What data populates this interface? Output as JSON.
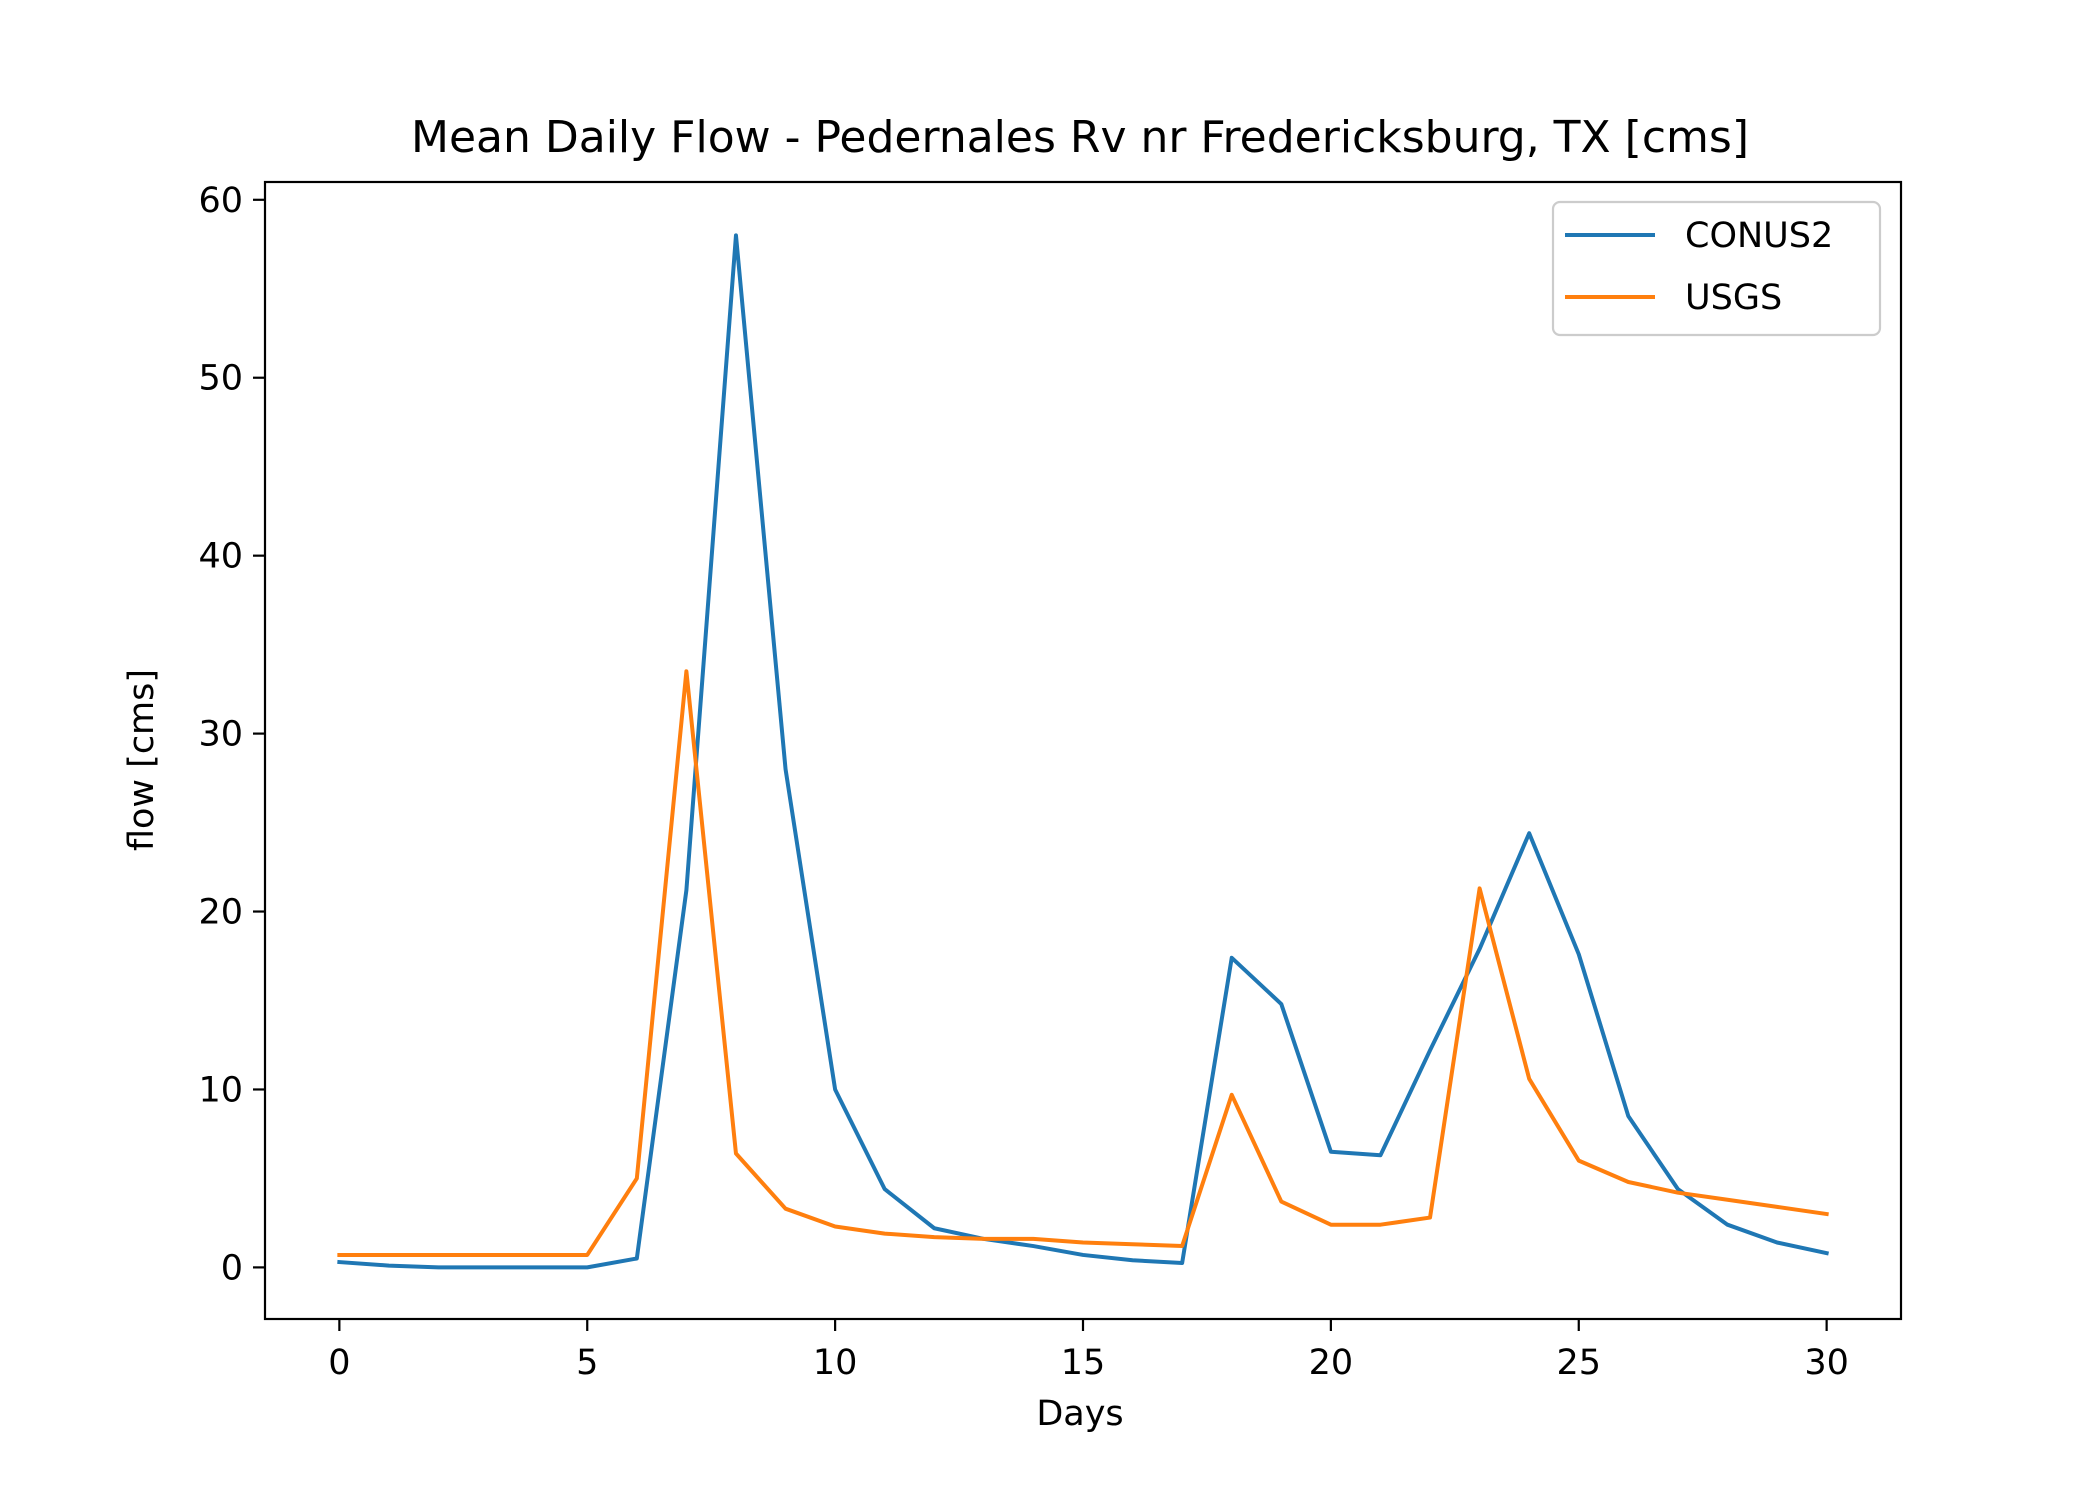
{
  "chart_data": {
    "type": "line",
    "title": "Mean Daily Flow - Pedernales Rv nr Fredericksburg, TX [cms]",
    "xlabel": "Days",
    "ylabel": "flow [cms]",
    "xlim": [
      -1.5,
      31.5
    ],
    "ylim": [
      -2.9,
      61
    ],
    "x_ticks": [
      0,
      5,
      10,
      15,
      20,
      25,
      30
    ],
    "x_tick_labels": [
      "0",
      "5",
      "10",
      "15",
      "20",
      "25",
      "30"
    ],
    "y_ticks": [
      0,
      10,
      20,
      30,
      40,
      50,
      60
    ],
    "y_tick_labels": [
      "0",
      "10",
      "20",
      "30",
      "40",
      "50",
      "60"
    ],
    "grid": false,
    "legend_position": "top-right",
    "x": [
      0,
      1,
      2,
      3,
      4,
      5,
      6,
      7,
      8,
      9,
      10,
      11,
      12,
      13,
      14,
      15,
      16,
      17,
      18,
      19,
      20,
      21,
      22,
      23,
      24,
      25,
      26,
      27,
      28,
      29,
      30
    ],
    "series": [
      {
        "name": "CONUS2",
        "color": "#1f77b4",
        "values": [
          0.3,
          0.1,
          0.0,
          0.0,
          0.0,
          0.0,
          0.5,
          21.2,
          58.0,
          28.0,
          10.0,
          4.4,
          2.2,
          1.6,
          1.2,
          0.7,
          0.4,
          0.25,
          17.4,
          14.8,
          6.5,
          6.3,
          12.2,
          17.9,
          24.4,
          17.6,
          8.5,
          4.4,
          2.4,
          1.4,
          0.8
        ]
      },
      {
        "name": "USGS",
        "color": "#ff7f0e",
        "values": [
          0.7,
          0.7,
          0.7,
          0.7,
          0.7,
          0.7,
          5.0,
          33.5,
          6.4,
          3.3,
          2.3,
          1.9,
          1.7,
          1.6,
          1.6,
          1.4,
          1.3,
          1.2,
          9.7,
          3.7,
          2.4,
          2.4,
          2.8,
          21.3,
          10.6,
          6.0,
          4.8,
          4.2,
          3.8,
          3.4,
          3.0
        ]
      }
    ]
  }
}
